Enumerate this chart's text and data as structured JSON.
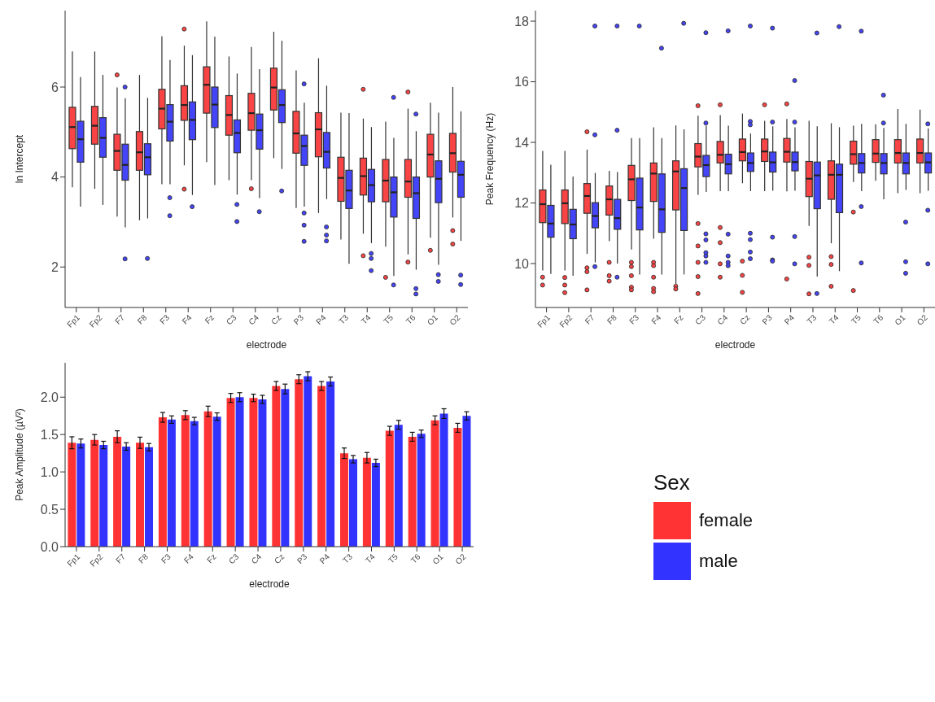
{
  "chart_data": [
    {
      "type": "box",
      "xlabel": "electrode",
      "ylabel": "ln Intercept",
      "ylim": [
        1.1,
        7.7
      ],
      "yticks": [
        2,
        4,
        6
      ],
      "categories": [
        "Fp1",
        "Fp2",
        "F7",
        "F8",
        "F3",
        "F4",
        "Fz",
        "C3",
        "C4",
        "Cz",
        "P3",
        "P4",
        "T3",
        "T4",
        "T5",
        "T6",
        "O1",
        "O2"
      ],
      "series": [
        {
          "color": "#f84444",
          "boxes": [
            {
              "low": 3.77,
              "q1": 4.63,
              "median": 5.11,
              "q3": 5.55,
              "high": 6.79
            },
            {
              "low": 3.74,
              "q1": 4.73,
              "median": 5.14,
              "q3": 5.57,
              "high": 6.79
            },
            {
              "low": 3.12,
              "q1": 4.15,
              "median": 4.58,
              "q3": 4.95,
              "high": 5.99,
              "outliers": [
                6.27
              ]
            },
            {
              "low": 3.04,
              "q1": 4.15,
              "median": 4.55,
              "q3": 5.01,
              "high": 6.27
            },
            {
              "low": 3.84,
              "q1": 5.07,
              "median": 5.52,
              "q3": 5.95,
              "high": 7.13
            },
            {
              "low": 4.26,
              "q1": 5.26,
              "median": 5.6,
              "q3": 6.03,
              "high": 6.92,
              "outliers": [
                7.29,
                3.73
              ]
            },
            {
              "low": 4.33,
              "q1": 5.42,
              "median": 6.05,
              "q3": 6.45,
              "high": 7.46
            },
            {
              "low": 3.93,
              "q1": 4.93,
              "median": 5.38,
              "q3": 5.81,
              "high": 6.68
            },
            {
              "low": 3.93,
              "q1": 5.04,
              "median": 5.42,
              "q3": 5.86,
              "high": 6.89,
              "outliers": [
                3.74
              ]
            },
            {
              "low": 4.42,
              "q1": 5.49,
              "median": 5.99,
              "q3": 6.42,
              "high": 7.23
            },
            {
              "low": 3.31,
              "q1": 4.53,
              "median": 4.97,
              "q3": 5.46,
              "high": 6.37
            },
            {
              "low": 3.2,
              "q1": 4.45,
              "median": 5.06,
              "q3": 5.43,
              "high": 6.64
            },
            {
              "low": 2.61,
              "q1": 3.46,
              "median": 3.98,
              "q3": 4.44,
              "high": 5.43
            },
            {
              "low": 2.74,
              "q1": 3.6,
              "median": 4.02,
              "q3": 4.42,
              "high": 5.3,
              "outliers": [
                5.95,
                2.25
              ]
            },
            {
              "low": 2.45,
              "q1": 3.45,
              "median": 3.92,
              "q3": 4.39,
              "high": 5.23,
              "outliers": [
                1.77
              ]
            },
            {
              "low": 2.28,
              "q1": 3.55,
              "median": 3.9,
              "q3": 4.39,
              "high": 5.52,
              "outliers": [
                5.89,
                2.11
              ]
            },
            {
              "low": 2.65,
              "q1": 4.0,
              "median": 4.5,
              "q3": 4.95,
              "high": 5.65,
              "outliers": [
                2.37
              ]
            },
            {
              "low": 3.1,
              "q1": 4.11,
              "median": 4.53,
              "q3": 4.97,
              "high": 6.0,
              "outliers": [
                2.81,
                2.51
              ]
            }
          ]
        },
        {
          "color": "#4444f8",
          "boxes": [
            {
              "low": 3.34,
              "q1": 4.33,
              "median": 4.84,
              "q3": 5.24,
              "high": 6.22
            },
            {
              "low": 3.38,
              "q1": 4.44,
              "median": 4.87,
              "q3": 5.32,
              "high": 6.27
            },
            {
              "low": 2.88,
              "q1": 3.93,
              "median": 4.27,
              "q3": 4.73,
              "high": 5.75,
              "outliers": [
                6.0,
                2.18
              ]
            },
            {
              "low": 3.08,
              "q1": 4.05,
              "median": 4.44,
              "q3": 4.74,
              "high": 5.76,
              "outliers": [
                2.19
              ]
            },
            {
              "low": 3.84,
              "q1": 4.8,
              "median": 5.23,
              "q3": 5.61,
              "high": 6.6,
              "outliers": [
                3.54,
                3.14
              ]
            },
            {
              "low": 3.6,
              "q1": 4.83,
              "median": 5.27,
              "q3": 5.67,
              "high": 6.71,
              "outliers": [
                3.34
              ]
            },
            {
              "low": 3.82,
              "q1": 5.1,
              "median": 5.61,
              "q3": 6.0,
              "high": 7.12
            },
            {
              "low": 3.61,
              "q1": 4.54,
              "median": 4.98,
              "q3": 5.27,
              "high": 6.3,
              "outliers": [
                3.39,
                3.01
              ]
            },
            {
              "low": 3.53,
              "q1": 4.62,
              "median": 5.04,
              "q3": 5.4,
              "high": 6.4,
              "outliers": [
                3.23
              ]
            },
            {
              "low": 4.18,
              "q1": 5.21,
              "median": 5.6,
              "q3": 5.94,
              "high": 7.03,
              "outliers": [
                3.69
              ]
            },
            {
              "low": 3.34,
              "q1": 4.26,
              "median": 4.69,
              "q3": 4.93,
              "high": 5.65,
              "outliers": [
                6.07,
                3.2,
                2.93,
                2.57
              ]
            },
            {
              "low": 3.51,
              "q1": 4.2,
              "median": 4.56,
              "q3": 4.99,
              "high": 6.03,
              "outliers": [
                2.89,
                2.71,
                2.58
              ]
            },
            {
              "low": 2.07,
              "q1": 3.3,
              "median": 3.7,
              "q3": 4.15,
              "high": 5.42
            },
            {
              "low": 2.53,
              "q1": 3.45,
              "median": 3.82,
              "q3": 4.17,
              "high": 5.11,
              "outliers": [
                2.3,
                2.19,
                1.92
              ]
            },
            {
              "low": 1.8,
              "q1": 3.11,
              "median": 3.66,
              "q3": 4.0,
              "high": 4.87,
              "outliers": [
                5.77,
                1.6
              ]
            },
            {
              "low": 1.94,
              "q1": 3.08,
              "median": 3.64,
              "q3": 4.0,
              "high": 5.02,
              "outliers": [
                5.4,
                1.52,
                1.4
              ]
            },
            {
              "low": 2.05,
              "q1": 3.43,
              "median": 3.96,
              "q3": 4.36,
              "high": 5.43,
              "outliers": [
                1.83,
                1.68
              ]
            },
            {
              "low": 2.58,
              "q1": 3.55,
              "median": 4.05,
              "q3": 4.35,
              "high": 5.46,
              "outliers": [
                1.82,
                1.61
              ]
            }
          ]
        }
      ]
    },
    {
      "type": "box",
      "xlabel": "electrode",
      "ylabel": "Peak Frequency (Hz)",
      "ylim": [
        8.55,
        18.35
      ],
      "yticks": [
        10,
        12,
        14,
        16,
        18
      ],
      "categories": [
        "Fp1",
        "Fp2",
        "F7",
        "F8",
        "F3",
        "F4",
        "Fz",
        "C3",
        "C4",
        "Cz",
        "P3",
        "P4",
        "T3",
        "T4",
        "T5",
        "T6",
        "O1",
        "O2"
      ],
      "series": [
        {
          "color": "#f84444",
          "boxes": [
            {
              "low": 9.77,
              "q1": 11.35,
              "median": 11.96,
              "q3": 12.43,
              "high": 13.72,
              "outliers": [
                9.55,
                9.29
              ]
            },
            {
              "low": 9.77,
              "q1": 11.32,
              "median": 11.99,
              "q3": 12.43,
              "high": 13.72,
              "outliers": [
                9.54,
                9.29,
                9.04
              ]
            },
            {
              "low": 10.32,
              "q1": 11.66,
              "median": 12.23,
              "q3": 12.64,
              "high": 13.76,
              "outliers": [
                14.35,
                9.86,
                9.73,
                9.13
              ]
            },
            {
              "low": 10.74,
              "q1": 11.6,
              "median": 12.12,
              "q3": 12.56,
              "high": 13.06,
              "outliers": [
                10.04,
                9.6,
                9.42
              ]
            },
            {
              "low": 10.46,
              "q1": 12.08,
              "median": 12.78,
              "q3": 13.24,
              "high": 14.14,
              "outliers": [
                10.04,
                9.9,
                9.6,
                9.22,
                9.13
              ]
            },
            {
              "low": 10.82,
              "q1": 12.05,
              "median": 12.97,
              "q3": 13.32,
              "high": 14.5,
              "outliers": [
                10.04,
                9.93,
                9.55,
                9.18,
                9.07
              ]
            },
            {
              "low": 9.33,
              "q1": 11.77,
              "median": 13.04,
              "q3": 13.39,
              "high": 14.56,
              "outliers": [
                9.25,
                9.16
              ]
            },
            {
              "low": 12.27,
              "q1": 13.19,
              "median": 13.53,
              "q3": 13.96,
              "high": 14.88,
              "outliers": [
                15.21,
                11.32,
                10.58,
                10.04,
                9.57,
                9.01
              ]
            },
            {
              "low": 12.39,
              "q1": 13.32,
              "median": 13.59,
              "q3": 14.03,
              "high": 14.9,
              "outliers": [
                15.24,
                11.19,
                10.69,
                9.99,
                9.55
              ]
            },
            {
              "low": 12.65,
              "q1": 13.39,
              "median": 13.68,
              "q3": 14.11,
              "high": 14.95,
              "outliers": [
                10.08,
                9.61,
                9.05
              ]
            },
            {
              "low": 12.39,
              "q1": 13.37,
              "median": 13.7,
              "q3": 14.11,
              "high": 14.71,
              "outliers": [
                15.24
              ]
            },
            {
              "low": 12.38,
              "q1": 13.35,
              "median": 13.69,
              "q3": 14.13,
              "high": 14.77,
              "outliers": [
                15.27,
                9.49
              ]
            },
            {
              "low": 11.24,
              "q1": 12.21,
              "median": 12.8,
              "q3": 13.37,
              "high": 14.71,
              "outliers": [
                10.21,
                9.94,
                9.0
              ]
            },
            {
              "low": 10.67,
              "q1": 12.12,
              "median": 12.93,
              "q3": 13.39,
              "high": 14.63,
              "outliers": [
                10.23,
                9.97,
                9.25
              ]
            },
            {
              "low": 12.69,
              "q1": 13.28,
              "median": 13.61,
              "q3": 14.04,
              "high": 14.55,
              "outliers": [
                11.7,
                9.11
              ]
            },
            {
              "low": 12.73,
              "q1": 13.34,
              "median": 13.63,
              "q3": 14.09,
              "high": 14.6
            },
            {
              "low": 12.32,
              "q1": 13.32,
              "median": 13.65,
              "q3": 14.09,
              "high": 15.1
            },
            {
              "low": 12.32,
              "q1": 13.32,
              "median": 13.65,
              "q3": 14.11,
              "high": 15.08
            }
          ]
        },
        {
          "color": "#4444f8",
          "boxes": [
            {
              "low": 9.66,
              "q1": 10.87,
              "median": 11.32,
              "q3": 11.92,
              "high": 13.26
            },
            {
              "low": 9.6,
              "q1": 10.82,
              "median": 11.29,
              "q3": 11.79,
              "high": 12.87
            },
            {
              "low": 10.04,
              "q1": 11.18,
              "median": 11.57,
              "q3": 12.01,
              "high": 12.99,
              "outliers": [
                17.84,
                14.25,
                9.9
              ]
            },
            {
              "low": 10.0,
              "q1": 11.13,
              "median": 11.5,
              "q3": 12.12,
              "high": 13.02,
              "outliers": [
                17.84,
                14.4,
                9.55
              ]
            },
            {
              "low": 9.64,
              "q1": 11.11,
              "median": 11.85,
              "q3": 12.82,
              "high": 14.14,
              "outliers": [
                17.84
              ]
            },
            {
              "low": 9.64,
              "q1": 11.03,
              "median": 11.79,
              "q3": 12.96,
              "high": 14.14,
              "outliers": [
                17.11
              ]
            },
            {
              "low": 9.64,
              "q1": 11.09,
              "median": 12.49,
              "q3": 13.13,
              "high": 14.43,
              "outliers": [
                17.93
              ]
            },
            {
              "low": 12.36,
              "q1": 12.87,
              "median": 13.25,
              "q3": 13.57,
              "high": 14.55,
              "outliers": [
                17.62,
                14.64,
                10.98,
                10.78,
                10.36,
                10.25,
                10.04
              ]
            },
            {
              "low": 12.39,
              "q1": 12.96,
              "median": 13.28,
              "q3": 13.61,
              "high": 14.55,
              "outliers": [
                17.68,
                10.97,
                10.25,
                10.04,
                9.93
              ]
            },
            {
              "low": 12.39,
              "q1": 13.04,
              "median": 13.32,
              "q3": 13.65,
              "high": 14.29,
              "outliers": [
                17.84,
                14.69,
                14.58,
                11.0,
                10.79,
                10.38,
                10.16
              ]
            },
            {
              "low": 12.4,
              "q1": 13.02,
              "median": 13.34,
              "q3": 13.68,
              "high": 14.53,
              "outliers": [
                17.77,
                14.67,
                10.87,
                10.12,
                10.08
              ]
            },
            {
              "low": 12.4,
              "q1": 13.06,
              "median": 13.35,
              "q3": 13.68,
              "high": 14.5,
              "outliers": [
                16.04,
                14.67,
                10.89,
                9.99
              ]
            },
            {
              "low": 9.57,
              "q1": 11.81,
              "median": 12.91,
              "q3": 13.35,
              "high": 14.53,
              "outliers": [
                17.61,
                9.01
              ]
            },
            {
              "low": 9.75,
              "q1": 11.68,
              "median": 12.93,
              "q3": 13.28,
              "high": 14.5,
              "outliers": [
                17.82
              ]
            },
            {
              "low": 12.39,
              "q1": 12.99,
              "median": 13.32,
              "q3": 13.63,
              "high": 14.61,
              "outliers": [
                17.67,
                11.88,
                10.02
              ]
            },
            {
              "low": 12.12,
              "q1": 12.96,
              "median": 13.32,
              "q3": 13.63,
              "high": 14.48,
              "outliers": [
                15.56,
                14.64
              ]
            },
            {
              "low": 12.43,
              "q1": 12.96,
              "median": 13.32,
              "q3": 13.65,
              "high": 14.61,
              "outliers": [
                11.37,
                10.06,
                9.68
              ]
            },
            {
              "low": 12.4,
              "q1": 12.99,
              "median": 13.34,
              "q3": 13.65,
              "high": 14.46,
              "outliers": [
                14.61,
                11.76,
                9.99
              ]
            }
          ]
        }
      ]
    },
    {
      "type": "bar",
      "xlabel": "electrode",
      "ylabel": "Peak Amplitude (µV²)",
      "ylim": [
        0,
        2.46
      ],
      "yticks": [
        {
          "value": 0,
          "label": "0.0"
        },
        0.5,
        {
          "value": 1,
          "label": "1.0"
        },
        1.5,
        {
          "value": 2,
          "label": "2.0"
        }
      ],
      "categories": [
        "Fp1",
        "Fp2",
        "F7",
        "F8",
        "F3",
        "F4",
        "Fz",
        "C3",
        "C4",
        "Cz",
        "P3",
        "P4",
        "T3",
        "T4",
        "T5",
        "T6",
        "O1",
        "O2"
      ],
      "legend": "right",
      "legend_title": "Sex",
      "series": [
        {
          "name": "female",
          "color": "#ff3333",
          "values": [
            1.39,
            1.43,
            1.47,
            1.39,
            1.73,
            1.76,
            1.81,
            1.99,
            1.99,
            2.15,
            2.24,
            2.15,
            1.25,
            1.19,
            1.55,
            1.47,
            1.69,
            1.59
          ],
          "errors": [
            0.08,
            0.07,
            0.08,
            0.075,
            0.065,
            0.06,
            0.07,
            0.06,
            0.05,
            0.06,
            0.06,
            0.06,
            0.07,
            0.07,
            0.06,
            0.06,
            0.06,
            0.06
          ]
        },
        {
          "name": "male",
          "color": "#3333ff",
          "values": [
            1.38,
            1.36,
            1.34,
            1.33,
            1.7,
            1.68,
            1.74,
            2.0,
            1.97,
            2.11,
            2.28,
            2.21,
            1.17,
            1.12,
            1.63,
            1.51,
            1.78,
            1.75
          ],
          "errors": [
            0.06,
            0.05,
            0.05,
            0.05,
            0.05,
            0.05,
            0.05,
            0.06,
            0.055,
            0.065,
            0.06,
            0.06,
            0.05,
            0.05,
            0.06,
            0.05,
            0.065,
            0.055
          ]
        }
      ]
    }
  ]
}
